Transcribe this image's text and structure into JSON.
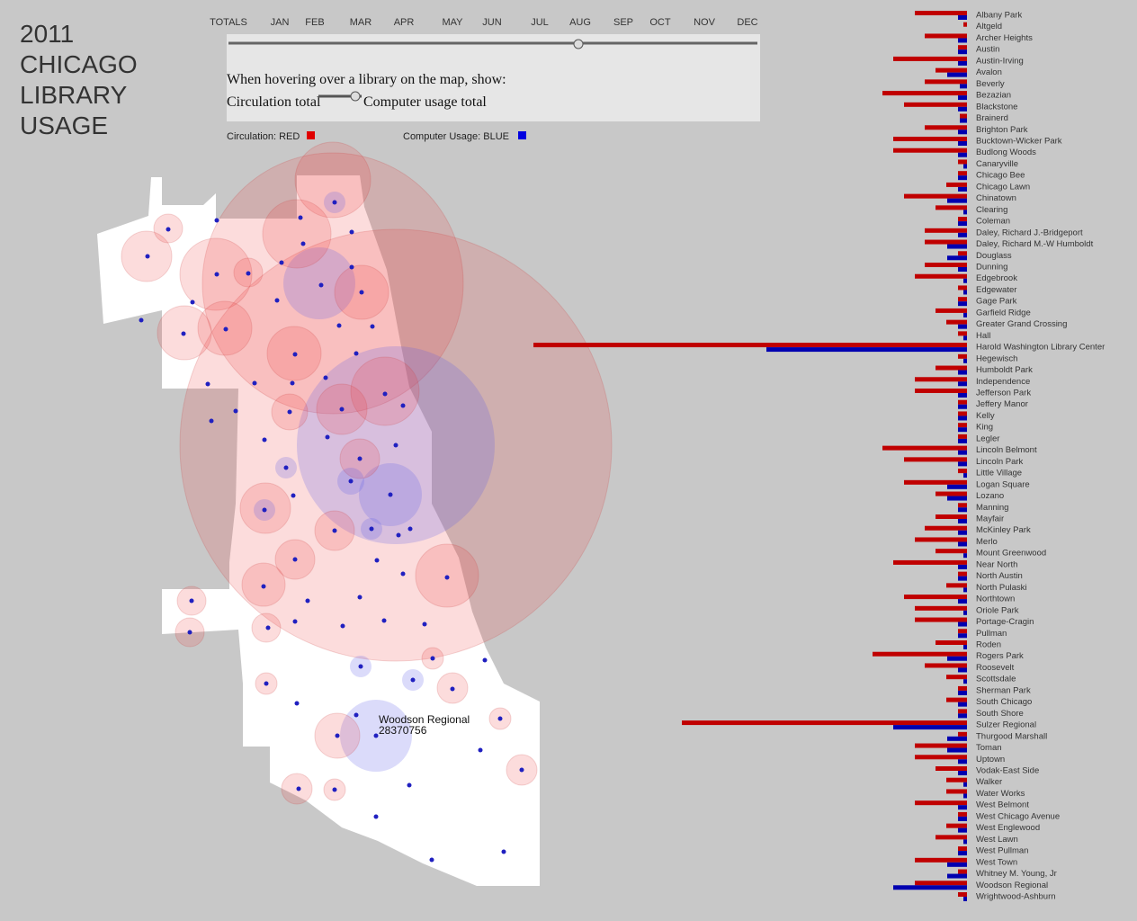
{
  "header": {
    "title_lines": [
      "2011",
      "CHICAGO",
      "LIBRARY",
      "USAGE"
    ]
  },
  "timeline": {
    "labels": [
      "TOTALS",
      "JAN",
      "FEB",
      "MAR",
      "APR",
      "MAY",
      "JUN",
      "JUL",
      "AUG",
      "SEP",
      "OCT",
      "NOV",
      "DEC"
    ]
  },
  "hover_toggle": {
    "prompt": "When hovering over a library on the map, show:",
    "left": "Circulation total",
    "right": "Computer usage total"
  },
  "legend": {
    "circulation": "Circulation: RED",
    "computer": "Computer Usage: BLUE",
    "circulation_color": "#e00000",
    "computer_color": "#0000e0"
  },
  "tooltip": {
    "name": "Woodson Regional",
    "value": "28370756"
  },
  "libraries": {
    "names": [
      "Albany Park",
      "Altgeld",
      "Archer Heights",
      "Austin",
      "Austin-Irving",
      "Avalon",
      "Beverly",
      "Bezazian",
      "Blackstone",
      "Brainerd",
      "Brighton Park",
      "Bucktown-Wicker Park",
      "Budlong Woods",
      "Canaryville",
      "Chicago Bee",
      "Chicago Lawn",
      "Chinatown",
      "Clearing",
      "Coleman",
      "Daley, Richard J.-Bridgeport",
      "Daley, Richard M.-W Humboldt",
      "Douglass",
      "Dunning",
      "Edgebrook",
      "Edgewater",
      "Gage Park",
      "Garfield Ridge",
      "Greater Grand Crossing",
      "Hall",
      "Harold Washington Library Center",
      "Hegewisch",
      "Humboldt Park",
      "Independence",
      "Jefferson Park",
      "Jeffery Manor",
      "Kelly",
      "King",
      "Legler",
      "Lincoln Belmont",
      "Lincoln Park",
      "Little Village",
      "Logan Square",
      "Lozano",
      "Manning",
      "Mayfair",
      "McKinley Park",
      "Merlo",
      "Mount Greenwood",
      "Near North",
      "North Austin",
      "North Pulaski",
      "Northtown",
      "Oriole Park",
      "Portage-Cragin",
      "Pullman",
      "Roden",
      "Rogers Park",
      "Roosevelt",
      "Scottsdale",
      "Sherman Park",
      "South Chicago",
      "South Shore",
      "Sulzer Regional",
      "Thurgood Marshall",
      "Toman",
      "Uptown",
      "Vodak-East Side",
      "Walker",
      "Water Works",
      "West Belmont",
      "West Chicago Avenue",
      "West Englewood",
      "West Lawn",
      "West Pullman",
      "West Town",
      "Whitney M. Young, Jr",
      "Woodson Regional",
      "Wrightwood-Ashburn"
    ],
    "circulation": [
      58,
      4,
      47,
      10,
      82,
      35,
      47,
      94,
      70,
      8,
      47,
      82,
      82,
      10,
      10,
      23,
      70,
      35,
      10,
      47,
      47,
      10,
      47,
      58,
      10,
      10,
      35,
      23,
      10,
      482,
      10,
      35,
      58,
      58,
      10,
      10,
      10,
      10,
      94,
      70,
      10,
      70,
      35,
      10,
      35,
      47,
      58,
      35,
      82,
      10,
      23,
      70,
      58,
      58,
      10,
      35,
      105,
      47,
      23,
      10,
      23,
      10,
      317,
      10,
      58,
      58,
      35,
      23,
      23,
      58,
      10,
      23,
      35,
      10,
      58,
      10,
      58,
      10
    ],
    "computer": [
      10,
      0,
      10,
      10,
      10,
      22,
      8,
      10,
      10,
      8,
      10,
      10,
      10,
      4,
      10,
      10,
      22,
      4,
      10,
      10,
      22,
      22,
      10,
      4,
      4,
      10,
      4,
      10,
      4,
      223,
      4,
      10,
      10,
      10,
      10,
      10,
      10,
      10,
      10,
      10,
      4,
      22,
      22,
      10,
      10,
      10,
      10,
      4,
      10,
      10,
      4,
      10,
      4,
      10,
      10,
      4,
      22,
      10,
      4,
      10,
      10,
      10,
      82,
      22,
      22,
      10,
      10,
      4,
      4,
      10,
      10,
      10,
      4,
      10,
      22,
      22,
      82,
      4
    ]
  }
}
